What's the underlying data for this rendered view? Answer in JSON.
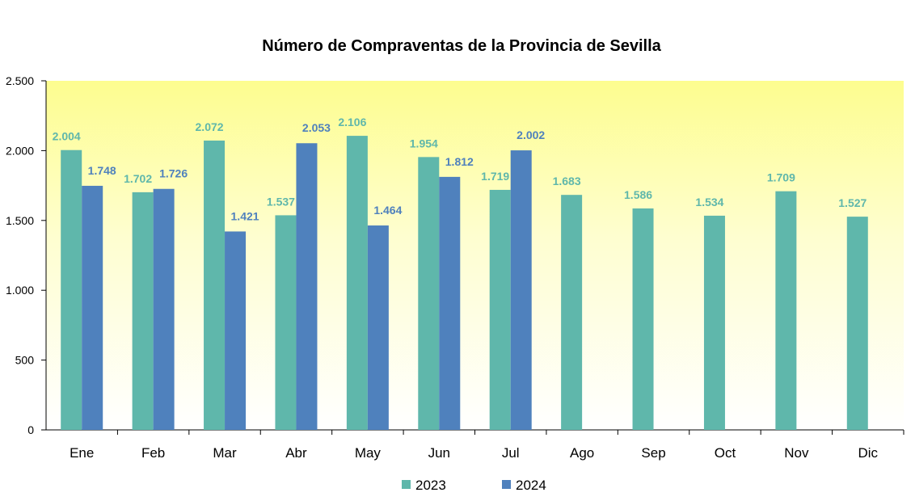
{
  "chart_data": {
    "type": "bar",
    "title": "Número de Compraventas de la Provincia de Sevilla",
    "xlabel": "",
    "ylabel": "",
    "ylim": [
      0,
      2500
    ],
    "yticks": [
      0,
      500,
      1000,
      1500,
      2000,
      2500
    ],
    "ytick_labels": [
      "0",
      "500",
      "1.000",
      "1.500",
      "2.000",
      "2.500"
    ],
    "categories": [
      "Ene",
      "Feb",
      "Mar",
      "Abr",
      "May",
      "Jun",
      "Jul",
      "Ago",
      "Sep",
      "Oct",
      "Nov",
      "Dic"
    ],
    "series": [
      {
        "name": "2023",
        "color": "#5fb7ab",
        "values": [
          2004,
          1702,
          2072,
          1537,
          2106,
          1954,
          1719,
          1683,
          1586,
          1534,
          1709,
          1527
        ],
        "labels": [
          "2.004",
          "1.702",
          "2.072",
          "1.537",
          "2.106",
          "1.954",
          "1.719",
          "1.683",
          "1.586",
          "1.534",
          "1.709",
          "1.527"
        ]
      },
      {
        "name": "2024",
        "color": "#4f81bd",
        "values": [
          1748,
          1726,
          1421,
          2053,
          1464,
          1812,
          2002,
          null,
          null,
          null,
          null,
          null
        ],
        "labels": [
          "1.748",
          "1.726",
          "1.421",
          "2.053",
          "1.464",
          "1.812",
          "2.002",
          null,
          null,
          null,
          null,
          null
        ]
      }
    ],
    "legend_position": "bottom",
    "grid": false,
    "background": "gradient yellow to white"
  }
}
